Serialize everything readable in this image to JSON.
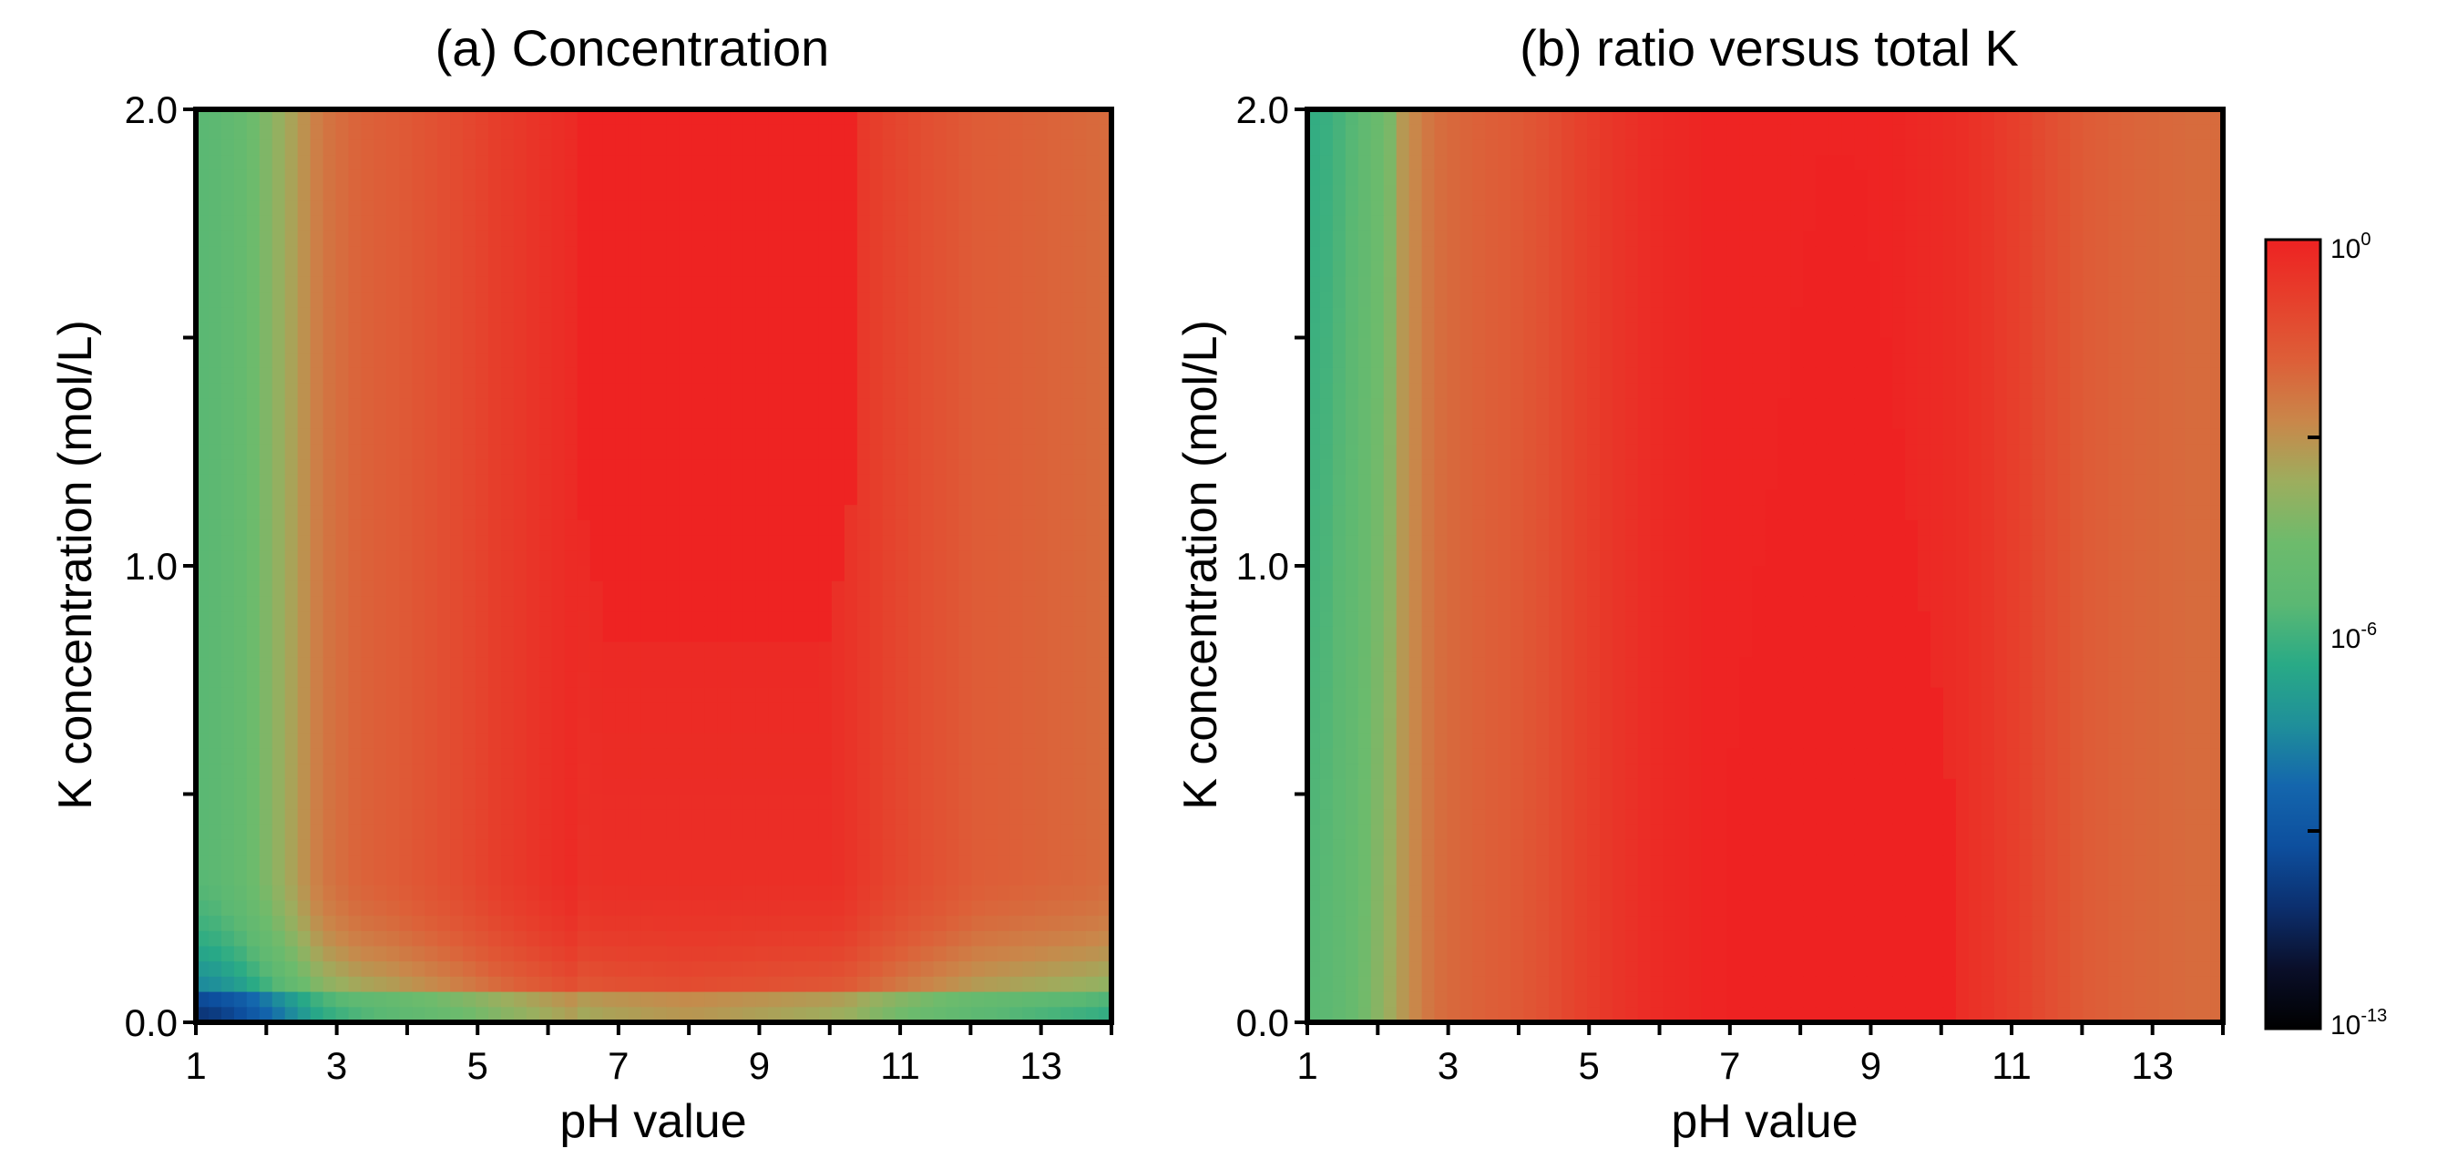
{
  "colors": {
    "scale": [
      "#000000",
      "#0a0f2a",
      "#0c2f6e",
      "#0d4f9e",
      "#1466ad",
      "#1f8f9a",
      "#29aa86",
      "#5bb873",
      "#6dbb6c",
      "#9cae5e",
      "#c9874a",
      "#dd5f38",
      "#e6402c",
      "#ee2222"
    ],
    "frame": "#000000"
  },
  "colorbar": {
    "label_max": "10",
    "label_max_exp": "0",
    "label_mid": "10",
    "label_mid_exp": "-6",
    "label_min": "10",
    "label_min_exp": "-13",
    "range_log10": [
      -13,
      0
    ]
  },
  "chart_data": [
    {
      "type": "heatmap",
      "title": "(a) Concentration",
      "xlabel": "pH value",
      "ylabel": "K concentration (mol/L)",
      "xlim": [
        1,
        14
      ],
      "ylim": [
        0.0,
        2.0
      ],
      "x_ticks": [
        "1",
        "3",
        "5",
        "7",
        "9",
        "11",
        "13"
      ],
      "y_ticks": [
        "0.0",
        "1.0",
        "2.0"
      ],
      "ph_bins": [
        1.2,
        1.6,
        2.0,
        2.4,
        2.8,
        3.3,
        3.8,
        4.3,
        4.8,
        5.3,
        5.8,
        6.3,
        6.7,
        7.2,
        7.7,
        8.2,
        8.7,
        9.2,
        9.7,
        10.2,
        10.6,
        11.1,
        11.6,
        12.1,
        12.6,
        13.1,
        13.6,
        13.9
      ],
      "column_log10_at_2_mol_L": [
        -6.0,
        -5.5,
        -4.6,
        -3.6,
        -2.6,
        -2.1,
        -1.9,
        -1.6,
        -1.3,
        -0.9,
        -0.6,
        -0.3,
        -0.05,
        -0.05,
        -0.05,
        -0.05,
        -0.05,
        -0.05,
        -0.2,
        -0.5,
        -0.9,
        -1.3,
        -1.6,
        -1.9,
        -2.0,
        -2.1,
        -2.2,
        -2.3
      ],
      "note": "value fades toward low K; plateau (10^0) for pH 6.5–10.3 above ~0.85 mol/L"
    },
    {
      "type": "heatmap",
      "title": "(b) ratio versus total K",
      "xlabel": "pH value",
      "ylabel": "K concentration (mol/L)",
      "xlim": [
        1,
        14
      ],
      "ylim": [
        0.0,
        2.0
      ],
      "x_ticks": [
        "1",
        "3",
        "5",
        "7",
        "9",
        "11",
        "13"
      ],
      "y_ticks": [
        "0.0",
        "1.0",
        "2.0"
      ],
      "ph_bins": [
        1.2,
        1.6,
        2.0,
        2.4,
        2.8,
        3.3,
        3.8,
        4.3,
        4.8,
        5.3,
        5.8,
        6.3,
        6.7,
        7.2,
        7.7,
        8.2,
        8.7,
        9.2,
        9.7,
        10.2,
        10.6,
        11.1,
        11.6,
        12.1,
        12.6,
        13.1,
        13.6,
        13.9
      ],
      "column_log10": [
        -6.0,
        -5.4,
        -4.4,
        -3.3,
        -2.4,
        -2.1,
        -1.9,
        -1.6,
        -1.1,
        -0.7,
        -0.35,
        -0.2,
        -0.05,
        -0.05,
        -0.05,
        -0.05,
        -0.05,
        -0.05,
        -0.2,
        -0.35,
        -0.6,
        -1.0,
        -1.5,
        -1.9,
        -2.1,
        -2.2,
        -2.3,
        -2.3
      ],
      "peak_log10": 0,
      "peak_region": "pH ~6.8–10, narrowing to pH ~8.3–8.9 near 1.9 mol/L"
    }
  ]
}
